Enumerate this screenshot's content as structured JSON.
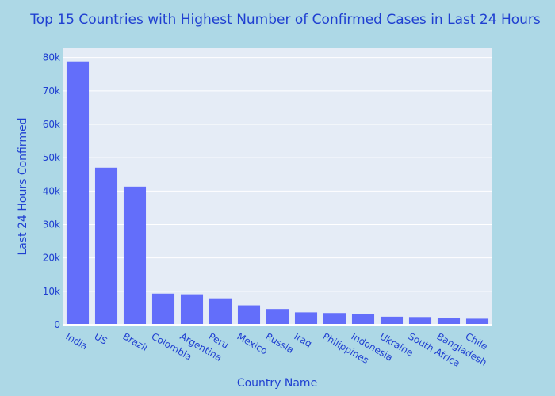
{
  "chart_data": {
    "type": "bar",
    "title": "Top 15 Countries with Highest Number of Confirmed Cases in Last 24 Hours",
    "xlabel": "Country Name",
    "ylabel": "Last 24 Hours Confirmed",
    "categories": [
      "India",
      "US",
      "Brazil",
      "Colombia",
      "Argentina",
      "Peru",
      "Mexico",
      "Russia",
      "Iraq",
      "Philippines",
      "Indonesia",
      "Ukraine",
      "South Africa",
      "Bangladesh",
      "Chile"
    ],
    "values": [
      78800,
      47000,
      41300,
      9300,
      9100,
      7900,
      5800,
      4700,
      3700,
      3500,
      3200,
      2400,
      2300,
      2000,
      1800
    ],
    "ylim": [
      0,
      83000
    ],
    "yticks": [
      0,
      10000,
      20000,
      30000,
      40000,
      50000,
      60000,
      70000,
      80000
    ],
    "ytick_labels": [
      "0",
      "10k",
      "20k",
      "30k",
      "40k",
      "50k",
      "60k",
      "70k",
      "80k"
    ],
    "grid": true,
    "colors": {
      "background": "#add8e6",
      "plot_background": "#e5ecf6",
      "bar": "#636efa",
      "text": "#1f3fd1",
      "grid": "#ffffff"
    }
  }
}
